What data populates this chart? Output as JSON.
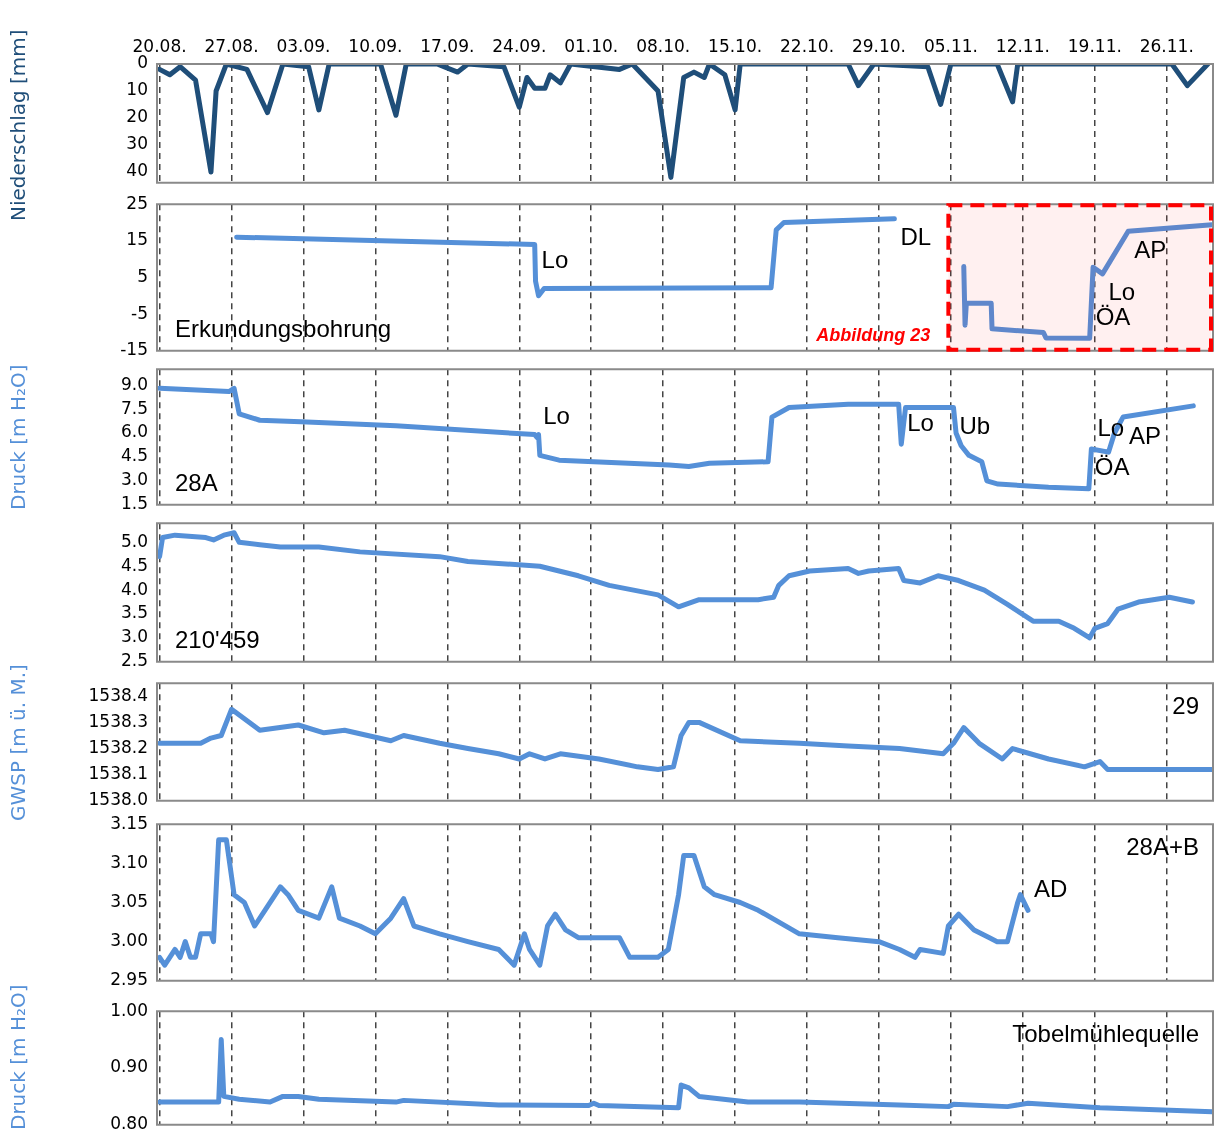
{
  "chart_data": [
    {
      "type": "line",
      "ylabel": "Niederschlag [mm]",
      "xlim": [
        "--08-19T18:00",
        "--11-30T12:00"
      ],
      "xticks": [
        {
          "value": "--08-20",
          "label": "20.08."
        },
        {
          "value": "--08-27",
          "label": "27.08."
        },
        {
          "value": "--09-03",
          "label": "03.09."
        },
        {
          "value": "--09-10",
          "label": "10.09."
        },
        {
          "value": "--09-17",
          "label": "17.09."
        },
        {
          "value": "--09-24",
          "label": "24.09."
        },
        {
          "value": "--10-01",
          "label": "01.10."
        },
        {
          "value": "--10-08",
          "label": "08.10."
        },
        {
          "value": "--10-15",
          "label": "15.10."
        },
        {
          "value": "--10-22",
          "label": "22.10."
        },
        {
          "value": "--10-29",
          "label": "29.10."
        },
        {
          "value": "--11-05",
          "label": "05.11."
        },
        {
          "value": "--11-12",
          "label": "12.11."
        },
        {
          "value": "--11-19",
          "label": "19.11."
        },
        {
          "value": "--11-26",
          "label": "26.11."
        }
      ],
      "ylim": [
        44,
        0
      ],
      "yticks": [
        0,
        10,
        20,
        30,
        40
      ],
      "grid": "x",
      "marker": "none",
      "line_style": "solid",
      "series": [
        {
          "color": "#1f4e79",
          "x": [
            "--08-20",
            "--08-21",
            "--08-22",
            "--08-23T12:00",
            "--08-25",
            "--08-25T12:00",
            "--08-26T12:00",
            "--08-28T12:00",
            "--08-30T12:00",
            "--09-01",
            "--09-03T12:00",
            "--09-04T12:00",
            "--09-05T12:00",
            "--09-10T12:00",
            "--09-12",
            "--09-13",
            "--09-16",
            "--09-18",
            "--09-19",
            "--09-22T12:00",
            "--09-24",
            "--09-24T18:00",
            "--09-25T12:00",
            "--09-26T12:00",
            "--09-27",
            "--09-28",
            "--09-29",
            "--10-03T18:00",
            "--10-05",
            "--10-07T12:00",
            "--10-08T18:00",
            "--10-10",
            "--10-11",
            "--10-12",
            "--10-12T12:00",
            "--10-14",
            "--10-15",
            "--10-15T12:00",
            "--10-26",
            "--10-27",
            "--10-28T12:00",
            "--11-02T18:00",
            "--11-04",
            "--11-05",
            "--11-09T12:00",
            "--11-11",
            "--11-11T12:00",
            "--11-26T12:00",
            "--11-28",
            "--11-30"
          ],
          "values": [
            2,
            4,
            1,
            6,
            40,
            10,
            0,
            2,
            18,
            0,
            1,
            17,
            0,
            0,
            19,
            0,
            0,
            3,
            0,
            1,
            16,
            5,
            9,
            9,
            4,
            7,
            0,
            2,
            0,
            10,
            42,
            5,
            3,
            5,
            0,
            4,
            17,
            0,
            0,
            8,
            0,
            1,
            15,
            0,
            0,
            14,
            0,
            0,
            8,
            0
          ]
        }
      ]
    },
    {
      "type": "line",
      "annotations": [
        "Erkundungsbohrung",
        {
          "text": "Lo",
          "x": "--09-25T14:00",
          "y": 4
        },
        {
          "text": "DL",
          "x": "--10-30T12:00",
          "y": 21
        },
        {
          "text": "AP",
          "x": "--11-22T06:00",
          "y": 17.6
        },
        {
          "text": "Lo",
          "x": "--11-19T18:00",
          "y": 6
        },
        {
          "text": "ÖA",
          "x": "--11-18T12:00",
          "y": -11.6
        }
      ],
      "xlim": [
        "--08-19T18:00",
        "--11-30T12:00"
      ],
      "xticks": [
        {
          "value": "--08-20",
          "label": null
        },
        {
          "value": "--08-27",
          "label": null
        },
        {
          "value": "--09-03",
          "label": null
        },
        {
          "value": "--09-10",
          "label": null
        },
        {
          "value": "--09-17",
          "label": null
        },
        {
          "value": "--09-24",
          "label": null
        },
        {
          "value": "--10-01",
          "label": null
        },
        {
          "value": "--10-08",
          "label": null
        },
        {
          "value": "--10-15",
          "label": null
        },
        {
          "value": "--10-22",
          "label": null
        },
        {
          "value": "--10-29",
          "label": null
        },
        {
          "value": "--11-05",
          "label": null
        },
        {
          "value": "--11-12",
          "label": null
        },
        {
          "value": "--11-19",
          "label": null
        },
        {
          "value": "--11-26",
          "label": null
        }
      ],
      "ylim": [
        -15,
        25
      ],
      "yticks": [
        -15,
        -5,
        5,
        15,
        25
      ],
      "tick_labels": "y",
      "grid": "x",
      "marker": "none",
      "line_style": "solid",
      "bands": [
        {
          "axis": "x",
          "from": "--11-04T18:00",
          "to": "--11-30T12:00",
          "label": "Abbildung 23",
          "color": "#ff0000"
        }
      ],
      "series": [
        {
          "color": "#5590d8",
          "x": [
            "--08-27T12:00",
            "--09-25T12:00",
            "--09-25T14:00",
            "--09-25T21:00",
            "--09-26T10:00",
            "--10-18T12:00",
            "--10-19",
            "--10-19T18:00",
            "--10-30T12:00",
            "--10-31",
            "--11-06T06:00",
            "--11-06T09:00",
            "--11-06T12:00",
            "--11-08T22:00",
            "--11-09",
            "--11-14",
            "--11-14T06:00",
            "--11-18T12:00",
            "--11-18T20:00",
            "--11-19T18:00",
            "--11-22T06:00",
            "--11-30T10:00"
          ],
          "values": [
            16,
            14,
            4,
            0,
            2,
            2.2,
            18,
            20,
            21,
            null,
            8,
            -8,
            -2,
            -2,
            -9,
            -10,
            -11.5,
            -11.6,
            7.8,
            6,
            17.6,
            19.4
          ]
        }
      ]
    },
    {
      "type": "line",
      "ylabel": "Druck [m H₂O]",
      "annotations": [
        "28A",
        {
          "text": "Lo",
          "x": "--09-25T18:00",
          "y": 5.7
        },
        {
          "text": "Lo",
          "x": "--10-31T04:00",
          "y": 5.3
        },
        {
          "text": "Ub",
          "x": "--11-05T06:00",
          "y": 7.6
        },
        {
          "text": "AP",
          "x": "--11-21T18:00",
          "y": 7.0
        },
        {
          "text": "Lo",
          "x": "--11-18T16:00",
          "y": 5.0
        },
        {
          "text": "ÖA",
          "x": "--11-18T10:00",
          "y": 2.5
        }
      ],
      "xlim": [
        "--08-19T18:00",
        "--11-30T12:00"
      ],
      "xticks": [
        {
          "value": "--08-20",
          "label": null
        },
        {
          "value": "--08-27",
          "label": null
        },
        {
          "value": "--09-03",
          "label": null
        },
        {
          "value": "--09-10",
          "label": null
        },
        {
          "value": "--09-17",
          "label": null
        },
        {
          "value": "--09-24",
          "label": null
        },
        {
          "value": "--10-01",
          "label": null
        },
        {
          "value": "--10-08",
          "label": null
        },
        {
          "value": "--10-15",
          "label": null
        },
        {
          "value": "--10-22",
          "label": null
        },
        {
          "value": "--10-29",
          "label": null
        },
        {
          "value": "--11-05",
          "label": null
        },
        {
          "value": "--11-12",
          "label": null
        },
        {
          "value": "--11-19",
          "label": null
        },
        {
          "value": "--11-26",
          "label": null
        }
      ],
      "ylim": [
        1.5,
        10
      ],
      "yticks": [
        1.5,
        {
          "value": 3,
          "label": "3.0"
        },
        4.5,
        {
          "value": 6,
          "label": "6.0"
        },
        7.5,
        {
          "value": 9,
          "label": "9.0"
        }
      ],
      "tick_labels": "y",
      "grid": "x",
      "marker": "none",
      "line_style": "solid",
      "series": [
        {
          "color": "#5590d8",
          "x": [
            "--08-20",
            "--08-26T18:00",
            "--08-27T06:00",
            "--08-27T18:00",
            "--08-29T18:00",
            "--09-02T18:00",
            "--09-12",
            "--09-25T12:00",
            "--09-25T18:00",
            "--09-25T21:00",
            "--09-26",
            "--09-27T21:00",
            "--10-08T14:00",
            "--10-10T12:00",
            "--10-12T12:00",
            "--10-18T05:00",
            "--10-18T14:00",
            "--10-20T06:00",
            "--10-26",
            "--10-30T22:00",
            "--10-31T04:00",
            "--10-31T14:00",
            "--11-05T06:00",
            "--11-05T12:00",
            "--11-06",
            "--11-06T18:00",
            "--11-08",
            "--11-08T12:00",
            "--11-09T14:00",
            "--11-14T12:00",
            "--11-18T10:00",
            "--11-18T16:00",
            "--11-20T08:00",
            "--11-20T22:00",
            "--11-21T18:00",
            "--11-28T14:00"
          ],
          "values": [
            8.8,
            8.6,
            8.8,
            7.2,
            6.8,
            6.7,
            6.45,
            5.9,
            5.7,
            5.9,
            4.6,
            4.3,
            4.0,
            3.9,
            4.1,
            4.2,
            7.0,
            7.6,
            7.8,
            7.8,
            5.3,
            7.6,
            7.6,
            6.0,
            5.2,
            4.6,
            4.2,
            3.0,
            2.8,
            2.6,
            2.5,
            5.0,
            4.8,
            6.0,
            7.0,
            7.7
          ]
        }
      ]
    },
    {
      "type": "line",
      "annotations": [
        "210'459"
      ],
      "xlim": [
        "--08-19T18:00",
        "--11-30T12:00"
      ],
      "xticks": [
        {
          "value": "--08-20",
          "label": null
        },
        {
          "value": "--08-27",
          "label": null
        },
        {
          "value": "--09-03",
          "label": null
        },
        {
          "value": "--09-10",
          "label": null
        },
        {
          "value": "--09-17",
          "label": null
        },
        {
          "value": "--09-24",
          "label": null
        },
        {
          "value": "--10-01",
          "label": null
        },
        {
          "value": "--10-08",
          "label": null
        },
        {
          "value": "--10-15",
          "label": null
        },
        {
          "value": "--10-22",
          "label": null
        },
        {
          "value": "--10-29",
          "label": null
        },
        {
          "value": "--11-05",
          "label": null
        },
        {
          "value": "--11-12",
          "label": null
        },
        {
          "value": "--11-19",
          "label": null
        },
        {
          "value": "--11-26",
          "label": null
        }
      ],
      "ylim": [
        2.5,
        5.4
      ],
      "yticks": [
        2.5,
        {
          "value": 3,
          "label": "3.0"
        },
        3.5,
        {
          "value": 4,
          "label": "4.0"
        },
        4.5,
        {
          "value": 5,
          "label": "5.0"
        }
      ],
      "tick_labels": "y",
      "grid": "x",
      "marker": "none",
      "line_style": "solid",
      "series": [
        {
          "color": "#5590d8",
          "x": [
            "--08-20",
            "--08-20T07:00",
            "--08-21T12:00",
            "--08-24T12:00",
            "--08-25T06:00",
            "--08-26T06:00",
            "--08-27T06:00",
            "--08-27T18:00",
            "--08-29T18:00",
            "--08-31T18:00",
            "--09-04T12:00",
            "--09-08T12:00",
            "--09-16T06:00",
            "--09-19",
            "--09-26",
            "--09-29T18:00",
            "--10-02T18:00",
            "--10-07T12:00",
            "--10-09T12:00",
            "--10-11T12:00",
            "--10-17T06:00",
            "--10-18T18:00",
            "--10-19T06:00",
            "--10-20T06:00",
            "--10-22T06:00",
            "--10-26",
            "--10-27",
            "--10-28",
            "--10-30T22:00",
            "--10-31T10:00",
            "--11-02",
            "--11-03T18:00",
            "--11-05T18:00",
            "--11-08T06:00",
            "--11-10T12:00",
            "--11-13",
            "--11-15T12:00",
            "--11-17",
            "--11-18T12:00",
            "--11-19",
            "--11-20T06:00",
            "--11-21T06:00",
            "--11-23T06:00",
            "--11-26T06:00",
            "--11-28T12:00"
          ],
          "values": [
            4.7,
            5.1,
            5.15,
            5.1,
            5.05,
            5.15,
            5.2,
            5.0,
            4.95,
            4.9,
            4.9,
            4.8,
            4.7,
            4.6,
            4.5,
            4.3,
            4.1,
            3.9,
            3.65,
            3.8,
            3.8,
            3.85,
            4.1,
            4.3,
            4.4,
            4.45,
            4.35,
            4.4,
            4.45,
            4.2,
            4.15,
            4.3,
            4.2,
            4.0,
            3.7,
            3.35,
            3.35,
            3.2,
            3.0,
            3.2,
            3.3,
            3.6,
            3.75,
            3.85,
            3.75
          ]
        }
      ]
    },
    {
      "type": "line",
      "ylabel": "GWSP [m ü. M.]",
      "annotations": [
        "29"
      ],
      "xlim": [
        "--08-19T18:00",
        "--11-30T12:00"
      ],
      "xticks": [
        {
          "value": "--08-20",
          "label": null
        },
        {
          "value": "--08-27",
          "label": null
        },
        {
          "value": "--09-03",
          "label": null
        },
        {
          "value": "--09-10",
          "label": null
        },
        {
          "value": "--09-17",
          "label": null
        },
        {
          "value": "--09-24",
          "label": null
        },
        {
          "value": "--10-01",
          "label": null
        },
        {
          "value": "--10-08",
          "label": null
        },
        {
          "value": "--10-15",
          "label": null
        },
        {
          "value": "--10-22",
          "label": null
        },
        {
          "value": "--10-29",
          "label": null
        },
        {
          "value": "--11-05",
          "label": null
        },
        {
          "value": "--11-12",
          "label": null
        },
        {
          "value": "--11-19",
          "label": null
        },
        {
          "value": "--11-26",
          "label": null
        }
      ],
      "ylim": [
        1538.0,
        1538.45
      ],
      "yticks": [
        {
          "value": 1538,
          "label": "1538.0"
        },
        1538.1,
        1538.2,
        1538.3,
        1538.4
      ],
      "tick_labels": "y",
      "grid": "x",
      "marker": "none",
      "line_style": "solid",
      "series": [
        {
          "color": "#5590d8",
          "x": [
            "--08-20",
            "--08-24",
            "--08-25",
            "--08-26",
            "--08-26T12:00",
            "--08-27",
            "--08-29T18:00",
            "--09-02T12:00",
            "--09-05",
            "--09-07",
            "--09-11T12:00",
            "--09-12T18:00",
            "--09-16T06:00",
            "--09-19",
            "--09-22",
            "--09-24",
            "--09-25",
            "--09-26T12:00",
            "--09-28",
            "--10-01T18:00",
            "--10-05T12:00",
            "--10-07T12:00",
            "--10-09",
            "--10-09T18:00",
            "--10-10T12:00",
            "--10-11T12:00",
            "--10-15T12:00",
            "--10-21T06:00",
            "--10-26",
            "--10-31",
            "--11-04T06:00",
            "--11-05T06:00",
            "--11-06T06:00",
            "--11-07T18:00",
            "--11-10",
            "--11-11",
            "--11-14T12:00",
            "--11-18",
            "--11-19T12:00",
            "--11-20T06:00",
            "--11-24T06:00",
            "--11-30T10:00"
          ],
          "values": [
            1538.22,
            1538.22,
            1538.24,
            1538.25,
            1538.3,
            1538.35,
            1538.27,
            1538.29,
            1538.26,
            1538.27,
            1538.23,
            1538.25,
            1538.22,
            1538.2,
            1538.18,
            1538.16,
            1538.18,
            1538.16,
            1538.18,
            1538.16,
            1538.13,
            1538.12,
            1538.13,
            1538.25,
            1538.3,
            1538.3,
            1538.23,
            1538.22,
            1538.21,
            1538.2,
            1538.18,
            1538.22,
            1538.28,
            1538.22,
            1538.16,
            1538.2,
            1538.16,
            1538.13,
            1538.15,
            1538.12,
            1538.12,
            1538.12
          ]
        }
      ]
    },
    {
      "type": "line",
      "annotations": [
        "28A+B",
        {
          "text": "AD",
          "x": "--11-12T12:00",
          "y": 3.04
        }
      ],
      "xlim": [
        "--08-19T18:00",
        "--11-30T12:00"
      ],
      "xticks": [
        {
          "value": "--08-20",
          "label": null
        },
        {
          "value": "--08-27",
          "label": null
        },
        {
          "value": "--09-03",
          "label": null
        },
        {
          "value": "--09-10",
          "label": null
        },
        {
          "value": "--09-17",
          "label": null
        },
        {
          "value": "--09-24",
          "label": null
        },
        {
          "value": "--10-01",
          "label": null
        },
        {
          "value": "--10-08",
          "label": null
        },
        {
          "value": "--10-15",
          "label": null
        },
        {
          "value": "--10-22",
          "label": null
        },
        {
          "value": "--10-29",
          "label": null
        },
        {
          "value": "--11-05",
          "label": null
        },
        {
          "value": "--11-12",
          "label": null
        },
        {
          "value": "--11-19",
          "label": null
        },
        {
          "value": "--11-26",
          "label": null
        }
      ],
      "ylim": [
        2.95,
        3.15
      ],
      "yticks": [
        2.95,
        {
          "value": 3,
          "label": "3.00"
        },
        3.05,
        {
          "value": 3.1,
          "label": "3.10"
        },
        3.15
      ],
      "tick_labels": "y",
      "grid": "x",
      "marker": "none",
      "line_style": "solid",
      "series": [
        {
          "color": "#5590d8",
          "x": [
            "--08-20",
            "--08-20T12:00",
            "--08-21T12:00",
            "--08-22",
            "--08-22T12:00",
            "--08-23",
            "--08-23T12:00",
            "--08-24",
            "--08-25",
            "--08-25T06:00",
            "--08-25T18:00",
            "--08-26T12:00",
            "--08-27T06:00",
            "--08-28T06:00",
            "--08-29T06:00",
            "--08-30T06:00",
            "--08-31T18:00",
            "--09-01T12:00",
            "--09-02T12:00",
            "--09-04T12:00",
            "--09-05T18:00",
            "--09-06T12:00",
            "--09-08T12:00",
            "--09-10",
            "--09-11T12:00",
            "--09-12T18:00",
            "--09-13T18:00",
            "--09-16T06:00",
            "--09-19",
            "--09-22",
            "--09-23T12:00",
            "--09-24T12:00",
            "--09-25",
            "--09-26",
            "--09-26T18:00",
            "--09-27T12:00",
            "--09-28T12:00",
            "--09-29T18:00",
            "--10-03T18:00",
            "--10-04T18:00",
            "--10-07T12:00",
            "--10-08T12:00",
            "--10-09T12:00",
            "--10-10",
            "--10-11",
            "--10-12",
            "--10-13",
            "--10-15T12:00",
            "--10-17T06:00",
            "--10-21T06:00",
            "--10-25",
            "--10-29",
            "--10-31",
            "--11-01T12:00",
            "--11-02",
            "--11-04T06:00",
            "--11-04T18:00",
            "--11-05T18:00",
            "--11-07T06:00",
            "--11-08T18:00",
            "--11-09T12:00",
            "--11-10T12:00",
            "--11-11T12:00",
            "--11-11T18:00",
            "--11-12T12:00"
          ],
          "values": [
            2.98,
            2.97,
            2.99,
            2.98,
            3.0,
            2.98,
            2.98,
            3.01,
            3.01,
            3.0,
            3.13,
            3.13,
            3.06,
            3.05,
            3.02,
            3.04,
            3.07,
            3.06,
            3.04,
            3.03,
            3.07,
            3.03,
            3.02,
            3.01,
            3.03,
            3.055,
            3.02,
            3.01,
            3.0,
            2.99,
            2.97,
            3.01,
            2.99,
            2.97,
            3.02,
            3.035,
            3.015,
            3.005,
            3.005,
            2.98,
            2.98,
            2.99,
            3.06,
            3.11,
            3.11,
            3.07,
            3.06,
            3.05,
            3.04,
            3.01,
            3.005,
            3.0,
            2.99,
            2.98,
            2.99,
            2.985,
            3.02,
            3.035,
            3.015,
            3.005,
            3.0,
            3.0,
            3.05,
            3.06,
            3.04
          ]
        }
      ]
    },
    {
      "type": "line",
      "ylabel": "Druck [m H₂O]",
      "annotations": [
        "Tobelmühlequelle"
      ],
      "xlim": [
        "--08-19T18:00",
        "--11-30T12:00"
      ],
      "xticks": [
        {
          "value": "--08-20",
          "label": null
        },
        {
          "value": "--08-27",
          "label": null
        },
        {
          "value": "--09-03",
          "label": null
        },
        {
          "value": "--09-10",
          "label": null
        },
        {
          "value": "--09-17",
          "label": null
        },
        {
          "value": "--09-24",
          "label": null
        },
        {
          "value": "--10-01",
          "label": null
        },
        {
          "value": "--10-08",
          "label": null
        },
        {
          "value": "--10-15",
          "label": null
        },
        {
          "value": "--10-22",
          "label": null
        },
        {
          "value": "--10-29",
          "label": null
        },
        {
          "value": "--11-05",
          "label": null
        },
        {
          "value": "--11-12",
          "label": null
        },
        {
          "value": "--11-19",
          "label": null
        },
        {
          "value": "--11-26",
          "label": null
        }
      ],
      "ylim": [
        0.8,
        1.0
      ],
      "yticks": [
        {
          "value": 0.8,
          "label": "0.80"
        },
        {
          "value": 0.9,
          "label": "0.90"
        },
        {
          "value": 1,
          "label": "1.00"
        }
      ],
      "tick_labels": "y",
      "grid": "x",
      "marker": "none",
      "line_style": "solid",
      "series": [
        {
          "color": "#5590d8",
          "x": [
            "--08-20",
            "--08-25T06:00",
            "--08-25T18:00",
            "--08-26",
            "--08-26T06:00",
            "--08-27T18:00",
            "--08-30T18:00",
            "--09-01",
            "--09-02T12:00",
            "--09-04T12:00",
            "--09-12",
            "--09-12T18:00",
            "--09-22",
            "--09-30T18:00",
            "--10-01T06:00",
            "--10-01T18:00",
            "--10-09T12:00",
            "--10-09T18:00",
            "--10-10T12:00",
            "--10-11T12:00",
            "--10-16T06:00",
            "--10-21T06:00",
            "--10-31",
            "--11-04T18:00",
            "--11-05T06:00",
            "--11-10T12:00",
            "--11-12T12:00",
            "--11-19T12:00",
            "--11-30T10:00"
          ],
          "values": [
            0.84,
            0.84,
            0.84,
            0.95,
            0.85,
            0.845,
            0.84,
            0.85,
            0.85,
            0.845,
            0.84,
            0.843,
            0.835,
            0.834,
            0.838,
            0.834,
            0.83,
            0.87,
            0.865,
            0.85,
            0.84,
            0.84,
            0.835,
            0.832,
            0.836,
            0.832,
            0.838,
            0.83,
            0.823
          ]
        }
      ]
    }
  ]
}
